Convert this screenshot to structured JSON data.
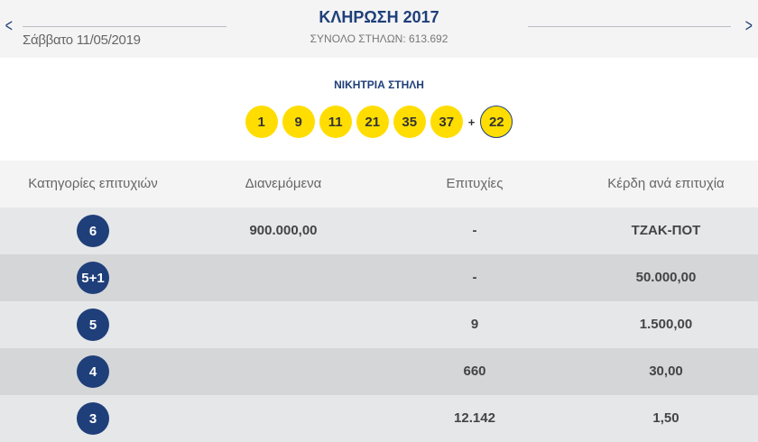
{
  "header": {
    "prev_icon": "chevron-left",
    "next_icon": "chevron-right",
    "date": "Σάββατο 11/05/2019",
    "title": "ΚΛΗΡΩΣΗ 2017",
    "total": "ΣΥΝΟΛΟ ΣΤΗΛΩΝ: 613.692"
  },
  "winning": {
    "label": "ΝΙΚΗΤΡΙΑ ΣΤΗΛΗ",
    "numbers": [
      "1",
      "9",
      "11",
      "21",
      "35",
      "37"
    ],
    "plus": "+",
    "bonus": "22"
  },
  "table": {
    "headers": [
      "Κατηγορίες επιτυχιών",
      "Διανεμόμενα",
      "Επιτυχίες",
      "Κέρδη ανά επιτυχία"
    ],
    "rows": [
      {
        "category": "6",
        "distributed": "900.000,00",
        "winners": "-",
        "prize": "ΤΖΑΚ-ΠΟΤ"
      },
      {
        "category": "5+1",
        "distributed": "",
        "winners": "-",
        "prize": "50.000,00"
      },
      {
        "category": "5",
        "distributed": "",
        "winners": "9",
        "prize": "1.500,00"
      },
      {
        "category": "4",
        "distributed": "",
        "winners": "660",
        "prize": "30,00"
      },
      {
        "category": "3",
        "distributed": "",
        "winners": "12.142",
        "prize": "1,50"
      }
    ]
  },
  "colors": {
    "navy": "#1f3f7a",
    "yellow": "#ffdd00",
    "row_light": "#e6e7e9",
    "row_dark": "#d5d6d8"
  }
}
